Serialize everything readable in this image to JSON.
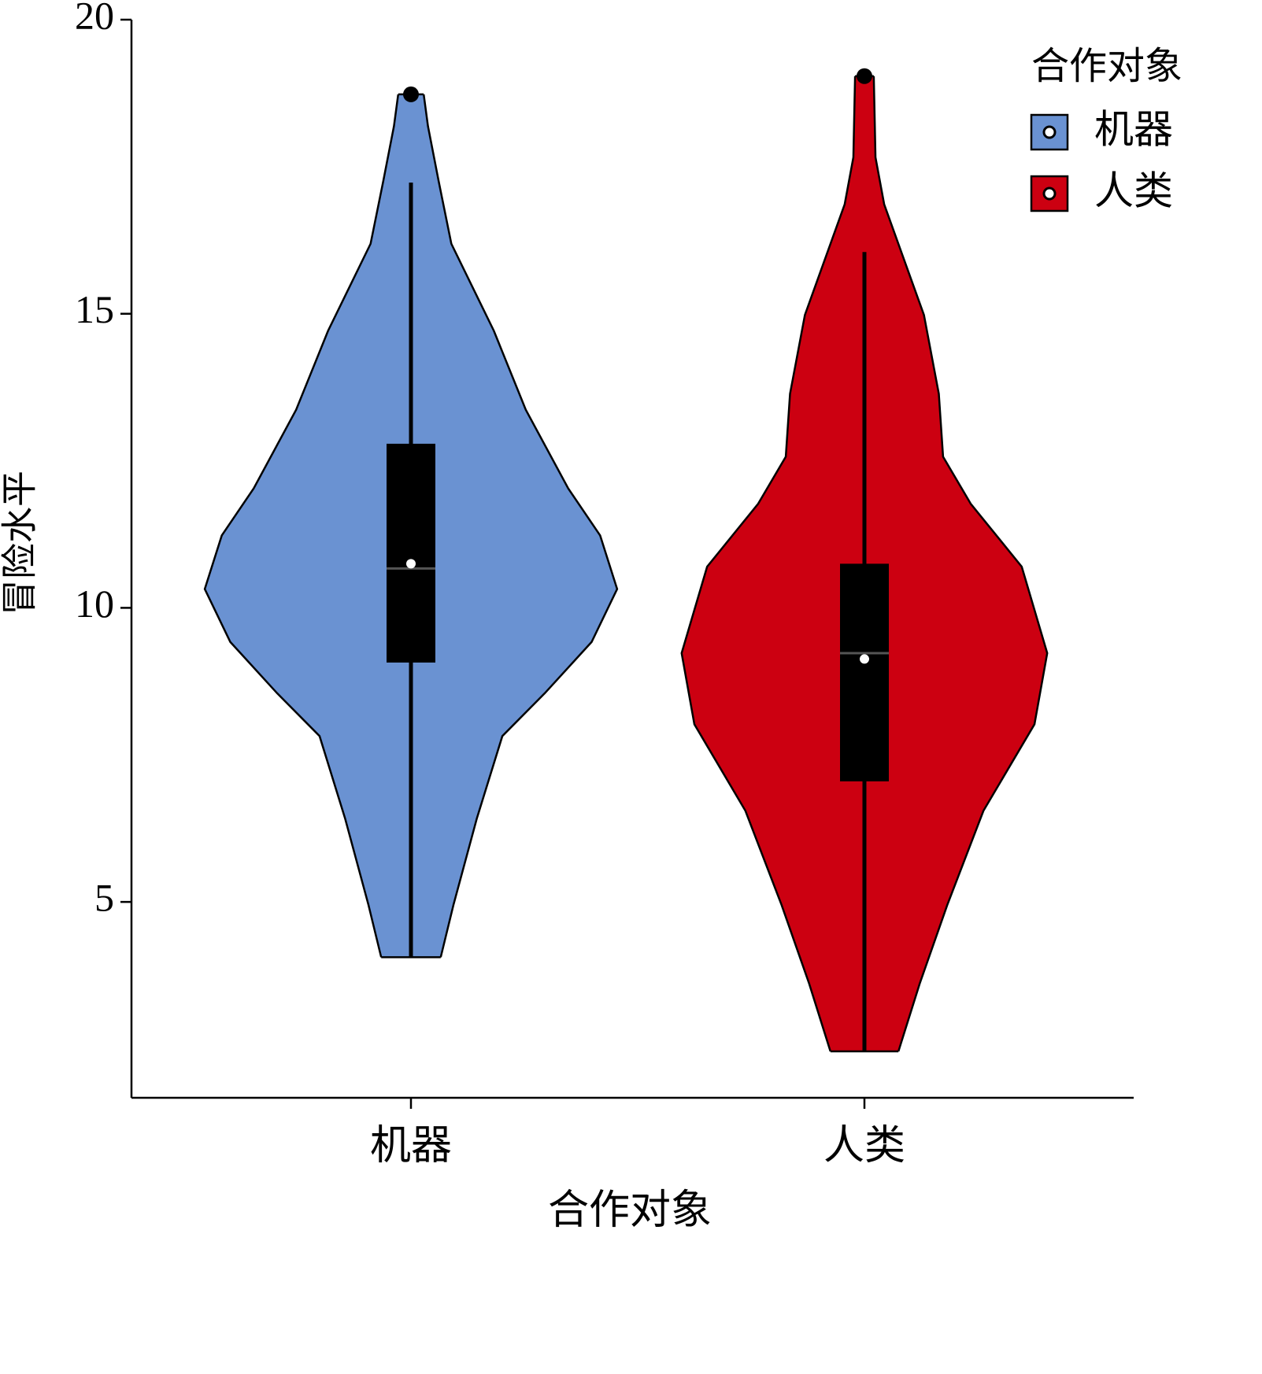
{
  "chart_data": {
    "type": "violin",
    "x_label": "合作对象",
    "y_label": "冒险水平",
    "categories": [
      "机器",
      "人类"
    ],
    "legend_title": "合作对象",
    "legend": "top-right",
    "ylim": [
      1.67,
      20
    ],
    "yticks": [
      5,
      10,
      15,
      20
    ],
    "series": [
      {
        "name": "机器",
        "color": "#6a92d2",
        "violin": {
          "y": [
            18.73,
            18.19,
            17.26,
            16.19,
            14.71,
            13.37,
            12.03,
            11.23,
            10.32,
            9.42,
            8.55,
            7.82,
            6.42,
            4.95,
            4.06
          ],
          "density": [
            0.06,
            0.08,
            0.13,
            0.19,
            0.39,
            0.54,
            0.74,
            0.89,
            0.97,
            0.85,
            0.63,
            0.43,
            0.31,
            0.2,
            0.14
          ]
        },
        "box": {
          "whisker_low": 4.06,
          "q1": 9.07,
          "median": 10.67,
          "q3": 12.79,
          "whisker_high": 17.23
        },
        "mean": 10.75,
        "outliers": [
          18.73
        ]
      },
      {
        "name": "人类",
        "color": "#cc0011",
        "violin": {
          "y": [
            19.04,
            17.66,
            16.86,
            14.98,
            13.64,
            12.57,
            11.77,
            10.7,
            9.23,
            8.02,
            6.55,
            4.95,
            3.61,
            2.46
          ],
          "density": [
            0.044,
            0.052,
            0.093,
            0.28,
            0.35,
            0.37,
            0.5,
            0.74,
            0.86,
            0.8,
            0.56,
            0.39,
            0.26,
            0.16
          ]
        },
        "box": {
          "whisker_low": 2.46,
          "q1": 7.05,
          "median": 9.23,
          "q3": 10.75,
          "whisker_high": 16.05
        },
        "mean": 9.13,
        "outliers": [
          19.04
        ]
      }
    ]
  }
}
